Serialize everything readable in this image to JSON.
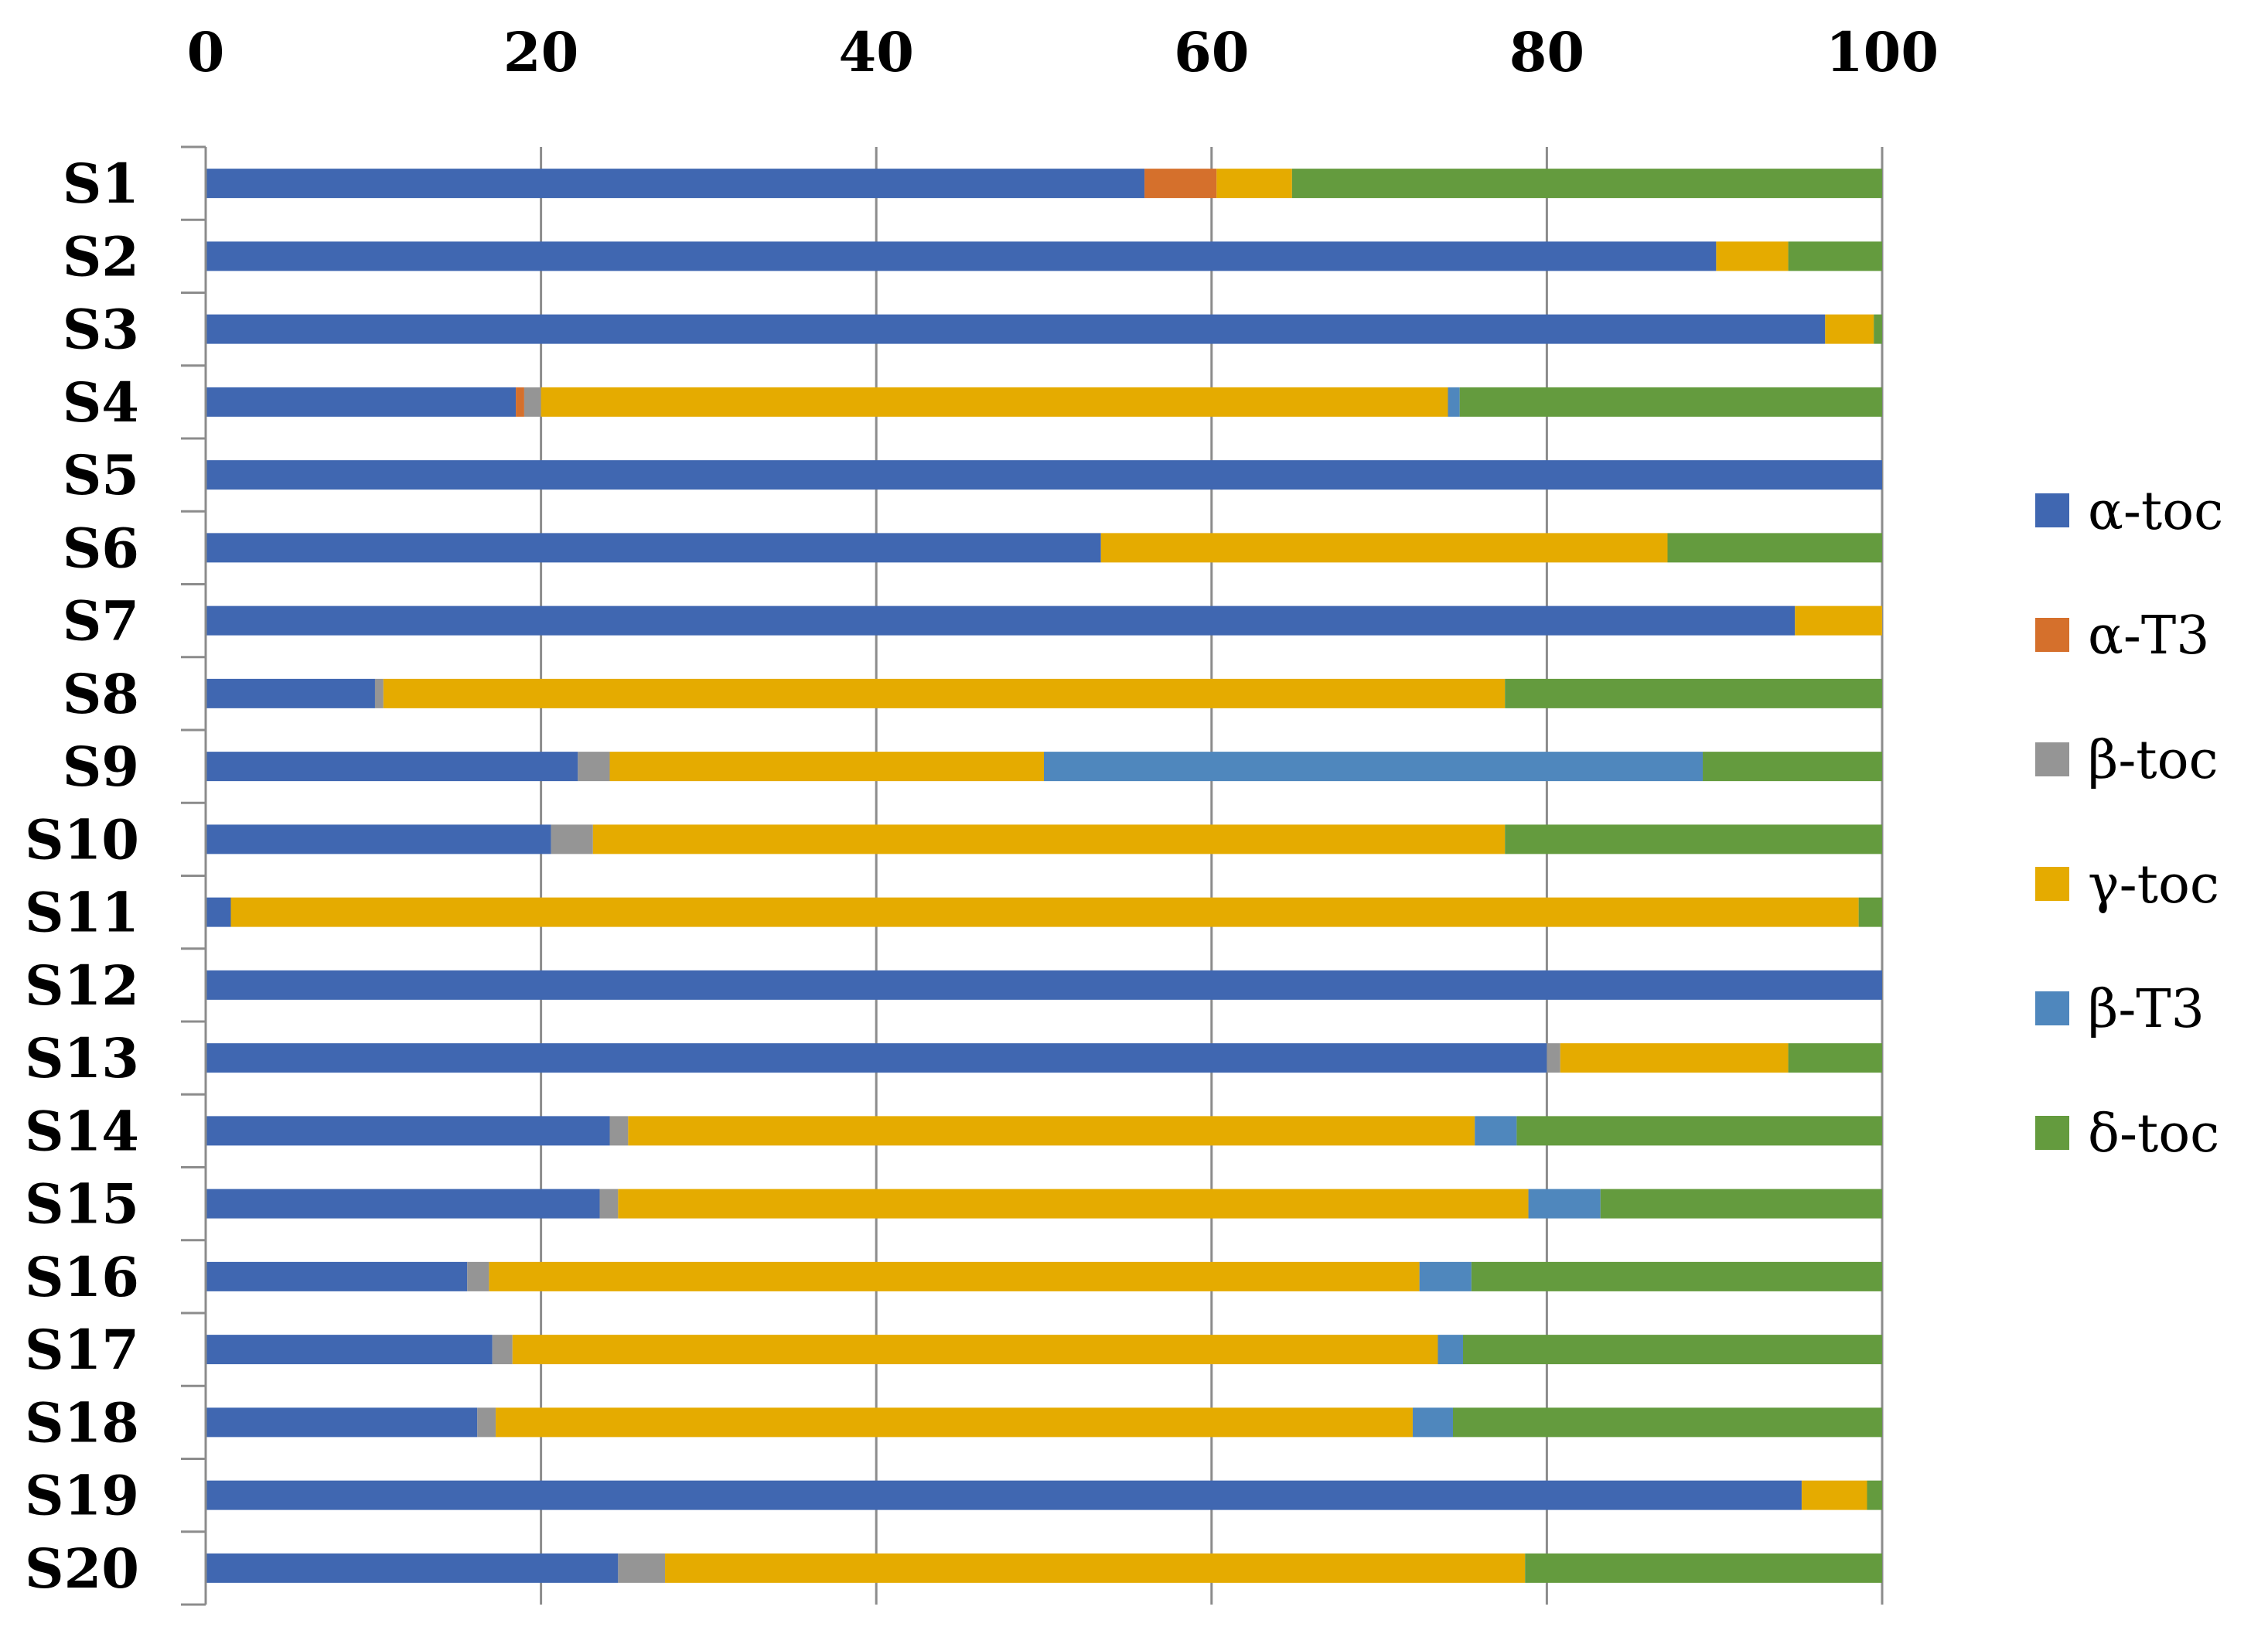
{
  "chart_data": {
    "type": "bar",
    "orientation": "horizontal",
    "stacked": true,
    "title": "",
    "xlabel": "",
    "ylabel": "",
    "xlim": [
      0,
      100
    ],
    "x_ticks": [
      "0",
      "20",
      "40",
      "60",
      "80",
      "100"
    ],
    "x_axis_position": "top",
    "grid": true,
    "legend_position": "right",
    "categories": [
      "S1",
      "S2",
      "S3",
      "S4",
      "S5",
      "S6",
      "S7",
      "S8",
      "S9",
      "S10",
      "S11",
      "S12",
      "S13",
      "S14",
      "S15",
      "S16",
      "S17",
      "S18",
      "S19",
      "S20"
    ],
    "series": [
      {
        "name": "α-toc",
        "color": "#4067b1",
        "values": [
          56.0,
          90.1,
          96.6,
          18.5,
          100,
          53.4,
          94.8,
          10.1,
          22.2,
          20.6,
          1.5,
          100,
          80.0,
          24.1,
          23.5,
          15.6,
          17.1,
          16.2,
          95.2,
          24.6
        ]
      },
      {
        "name": "α-T3",
        "color": "#d5702c",
        "values": [
          4.3,
          0,
          0,
          0.5,
          0,
          0,
          0,
          0,
          0,
          0,
          0,
          0,
          0,
          0,
          0,
          0,
          0,
          0,
          0,
          0
        ]
      },
      {
        "name": "β-toc",
        "color": "#959595",
        "values": [
          0,
          0,
          0,
          1.0,
          0,
          0,
          0,
          0.5,
          1.9,
          2.5,
          0,
          0,
          0.8,
          1.1,
          1.1,
          1.3,
          1.2,
          1.1,
          0,
          2.8
        ]
      },
      {
        "name": "γ-toc",
        "color": "#e5ab00",
        "values": [
          4.5,
          4.3,
          2.9,
          54.1,
          0,
          33.8,
          5.2,
          66.9,
          25.9,
          54.4,
          97.1,
          0,
          13.6,
          50.5,
          54.3,
          55.5,
          55.2,
          54.7,
          3.9,
          51.3
        ]
      },
      {
        "name": "β-T3",
        "color": "#4f87bd",
        "values": [
          0,
          0,
          0,
          0.7,
          0,
          0,
          0,
          0,
          39.3,
          0,
          0,
          0,
          0,
          2.5,
          4.3,
          3.1,
          1.5,
          2.4,
          0,
          0
        ]
      },
      {
        "name": "δ-toc",
        "color": "#649b3e",
        "values": [
          35.2,
          5.6,
          0.5,
          25.2,
          0,
          12.8,
          0,
          22.5,
          10.7,
          22.5,
          1.4,
          0,
          5.6,
          21.8,
          16.8,
          24.5,
          25.0,
          25.6,
          0.9,
          21.3
        ]
      }
    ]
  }
}
